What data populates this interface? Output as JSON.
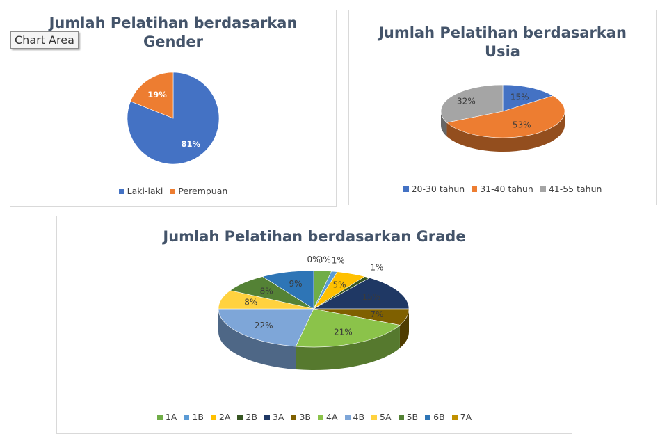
{
  "tooltip": "Chart Area",
  "chart_data": [
    {
      "type": "pie",
      "title_lines": [
        "Jumlah Pelatihan berdasarkan",
        "Gender"
      ],
      "categories": [
        "Laki-laki",
        "Perempuan"
      ],
      "values": [
        81,
        19
      ],
      "labels": [
        "81%",
        "19%"
      ],
      "colors": [
        "#4472c4",
        "#ed7d31"
      ],
      "legend_position": "bottom"
    },
    {
      "type": "pie",
      "title_lines": [
        "Jumlah Pelatihan berdasarkan",
        "Usia"
      ],
      "categories": [
        "20-30 tahun",
        "31-40 tahun",
        "41-55 tahun"
      ],
      "values": [
        15,
        53,
        32
      ],
      "labels": [
        "15%",
        "53%",
        "32%"
      ],
      "colors": [
        "#4472c4",
        "#ed7d31",
        "#a5a5a5"
      ],
      "legend_position": "bottom"
    },
    {
      "type": "pie",
      "title_lines": [
        "Jumlah Pelatihan berdasarkan Grade"
      ],
      "categories": [
        "1A",
        "1B",
        "2A",
        "2B",
        "3A",
        "3B",
        "4A",
        "4B",
        "5A",
        "5B",
        "6B",
        "7A"
      ],
      "values": [
        3,
        1,
        5,
        1,
        15,
        7,
        21,
        22,
        8,
        8,
        9,
        0
      ],
      "labels": [
        "3%",
        "1%",
        "5%",
        "1%",
        "15%",
        "7%",
        "21%",
        "22%",
        "8%",
        "8%",
        "9%",
        "0%"
      ],
      "colors": [
        "#70ad47",
        "#5b9bd5",
        "#ffc000",
        "#375623",
        "#1f3864",
        "#7f6000",
        "#8bc34a",
        "#7ea6d8",
        "#ffd23f",
        "#548235",
        "#2e75b6",
        "#c09000"
      ],
      "legend_position": "bottom"
    }
  ]
}
